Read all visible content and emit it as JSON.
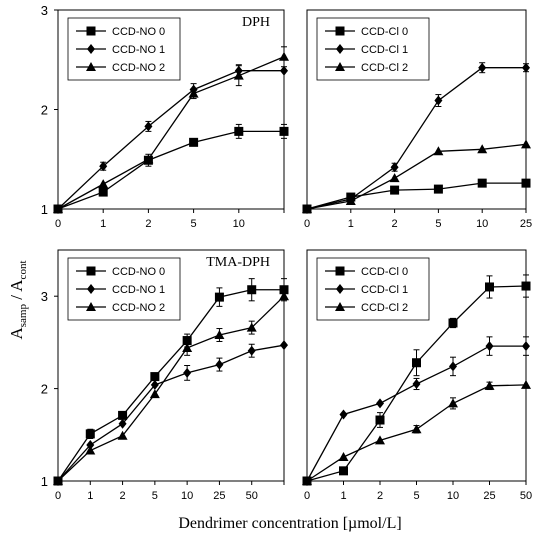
{
  "figure": {
    "ylabel_main": "A",
    "ylabel_sub1": "samp",
    "ylabel_sep": " / A",
    "ylabel_sub2": "cont",
    "xlabel": "Dendrimer concentration [µmol/L]"
  },
  "chart_data": [
    {
      "type": "line",
      "title": "DPH",
      "ylim": [
        1,
        3
      ],
      "yticks": [
        "1",
        "2",
        "3"
      ],
      "categories": [
        "0",
        "1",
        "2",
        "5",
        "10",
        ""
      ],
      "legend_position": "top-left",
      "series": [
        {
          "name": "CCD-NO 0",
          "marker": "square",
          "values": [
            1.0,
            1.17,
            1.49,
            1.67,
            1.78,
            1.78
          ],
          "errors": [
            0,
            0.03,
            0.06,
            0.03,
            0.07,
            0.07
          ]
        },
        {
          "name": "CCD-NO 1",
          "marker": "diamond",
          "values": [
            1.0,
            1.43,
            1.83,
            2.2,
            2.39,
            2.39
          ],
          "errors": [
            0,
            0.04,
            0.05,
            0.06,
            0.06,
            0
          ]
        },
        {
          "name": "CCD-NO 2",
          "marker": "triangle",
          "values": [
            1.0,
            1.25,
            1.5,
            2.16,
            2.34,
            2.53
          ],
          "errors": [
            0,
            0,
            0,
            0.05,
            0.1,
            0.1
          ]
        }
      ]
    },
    {
      "type": "line",
      "title": "",
      "ylim": [
        1,
        3
      ],
      "yticks": [],
      "categories": [
        "0",
        "1",
        "2",
        "5",
        "10",
        "25"
      ],
      "legend_position": "top-left",
      "series": [
        {
          "name": "CCD-Cl 0",
          "marker": "square",
          "values": [
            1.0,
            1.12,
            1.19,
            1.2,
            1.26,
            1.26
          ],
          "errors": [
            0,
            0,
            0,
            0,
            0,
            0
          ]
        },
        {
          "name": "CCD-Cl 1",
          "marker": "diamond",
          "values": [
            1.0,
            1.1,
            1.42,
            2.09,
            2.42,
            2.42
          ],
          "errors": [
            0,
            0,
            0.04,
            0.06,
            0.05,
            0.04
          ]
        },
        {
          "name": "CCD-Cl 2",
          "marker": "triangle",
          "values": [
            1.0,
            1.08,
            1.31,
            1.58,
            1.6,
            1.65
          ],
          "errors": [
            0,
            0,
            0,
            0,
            0,
            0
          ]
        }
      ]
    },
    {
      "type": "line",
      "title": "TMA-DPH",
      "ylim": [
        1,
        3.5
      ],
      "yticks": [
        "1",
        "2",
        "3"
      ],
      "categories": [
        "0",
        "1",
        "2",
        "5",
        "10",
        "25",
        "50",
        ""
      ],
      "legend_position": "top-left",
      "series": [
        {
          "name": "CCD-NO 0",
          "marker": "square",
          "values": [
            1.0,
            1.51,
            1.71,
            2.13,
            2.52,
            2.99,
            3.07,
            3.07
          ],
          "errors": [
            0,
            0.05,
            0.04,
            0,
            0.07,
            0.1,
            0.12,
            0.12
          ]
        },
        {
          "name": "CCD-NO 1",
          "marker": "diamond",
          "values": [
            1.0,
            1.39,
            1.62,
            2.04,
            2.17,
            2.26,
            2.41,
            2.47
          ],
          "errors": [
            0,
            0,
            0,
            0,
            0.08,
            0.07,
            0.07,
            0
          ]
        },
        {
          "name": "CCD-NO 2",
          "marker": "triangle",
          "values": [
            1.0,
            1.33,
            1.49,
            1.94,
            2.44,
            2.58,
            2.66,
            3.0
          ],
          "errors": [
            0,
            0,
            0,
            0,
            0.08,
            0.07,
            0.07,
            0
          ]
        }
      ]
    },
    {
      "type": "line",
      "title": "",
      "ylim": [
        1,
        3.5
      ],
      "yticks": [],
      "categories": [
        "0",
        "1",
        "2",
        "5",
        "10",
        "25",
        "50"
      ],
      "legend_position": "top-left",
      "series": [
        {
          "name": "CCD-Cl 0",
          "marker": "square",
          "values": [
            1.0,
            1.11,
            1.66,
            2.28,
            2.71,
            3.1,
            3.11
          ],
          "errors": [
            0,
            0,
            0.08,
            0.14,
            0.05,
            0.12,
            0.12
          ]
        },
        {
          "name": "CCD-Cl 1",
          "marker": "diamond",
          "values": [
            1.0,
            1.72,
            1.84,
            2.05,
            2.24,
            2.46,
            2.46
          ],
          "errors": [
            0,
            0,
            0,
            0.06,
            0.1,
            0.1,
            0.1
          ]
        },
        {
          "name": "CCD-Cl 2",
          "marker": "triangle",
          "values": [
            1.0,
            1.26,
            1.44,
            1.56,
            1.84,
            2.03,
            2.04
          ],
          "errors": [
            0,
            0,
            0,
            0.04,
            0.06,
            0.04,
            0
          ]
        }
      ]
    }
  ]
}
